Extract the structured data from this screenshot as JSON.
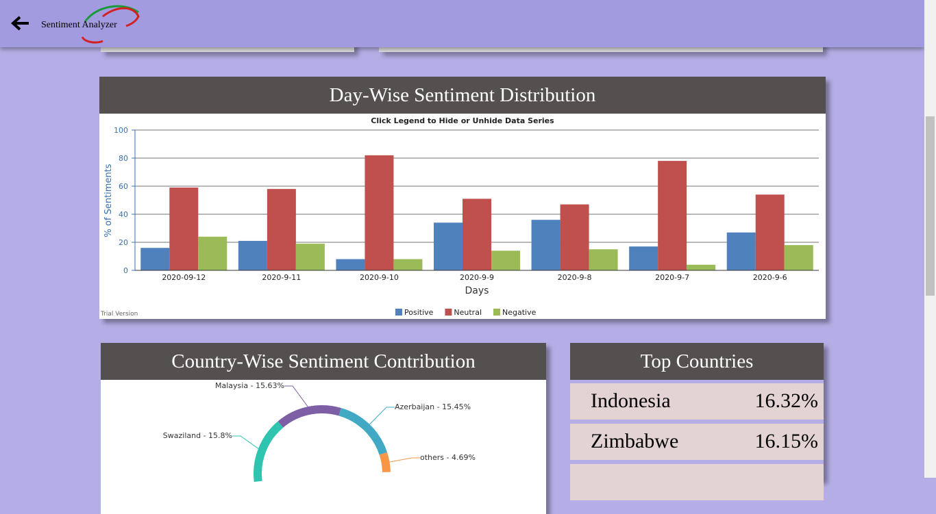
{
  "header": {
    "title": "Sentiment Analyzer"
  },
  "day_wise": {
    "title": "Day-Wise Sentiment Distribution",
    "chart_data": {
      "type": "bar",
      "subtitle": "Click Legend to Hide or Unhide Data Series",
      "x_label": "Days",
      "y_label": "% of Sentiments",
      "note": "Trial Version",
      "categories": [
        "2020-09-12",
        "2020-9-11",
        "2020-9-10",
        "2020-9-9",
        "2020-9-8",
        "2020-9-7",
        "2020-9-6"
      ],
      "series": [
        {
          "name": "Positive",
          "color": "#4f81bc",
          "values": [
            16,
            21,
            8,
            34,
            36,
            17,
            27
          ]
        },
        {
          "name": "Neutral",
          "color": "#c0504e",
          "values": [
            59,
            58,
            82,
            51,
            47,
            78,
            54
          ]
        },
        {
          "name": "Negative",
          "color": "#9bbb58",
          "values": [
            24,
            19,
            8,
            14,
            15,
            4,
            18
          ]
        }
      ],
      "ylim": [
        0,
        100
      ],
      "yticks": [
        0,
        20,
        40,
        60,
        80,
        100
      ],
      "grid": true,
      "legend": "bottom"
    }
  },
  "country_wise": {
    "title": "Country-Wise Sentiment Contribution",
    "chart_data": {
      "type": "doughnut",
      "labels": [
        "Swaziland - 15.8%",
        "Malaysia - 15.63%",
        "Azerbaijan - 15.45%",
        "others - 4.69%"
      ],
      "values": [
        15.8,
        15.63,
        15.45,
        4.69
      ],
      "colors": [
        "#2ec4b0",
        "#7e5fa6",
        "#41a9c4",
        "#f79647"
      ]
    }
  },
  "top_countries": {
    "title": "Top Countries",
    "rows": [
      {
        "country": "Indonesia",
        "share": "16.32%"
      },
      {
        "country": "Zimbabwe",
        "share": "16.15%"
      }
    ]
  }
}
